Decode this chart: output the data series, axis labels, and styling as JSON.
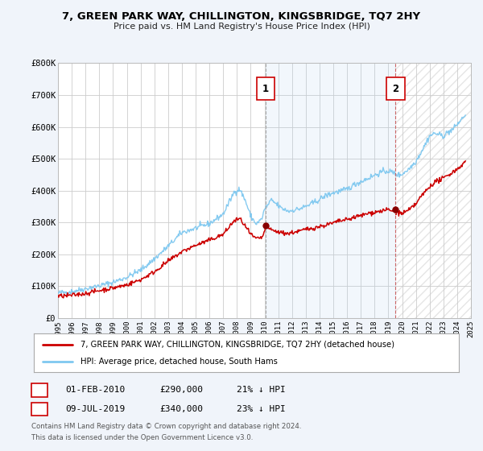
{
  "title": "7, GREEN PARK WAY, CHILLINGTON, KINGSBRIDGE, TQ7 2HY",
  "subtitle": "Price paid vs. HM Land Registry's House Price Index (HPI)",
  "legend_line1": "7, GREEN PARK WAY, CHILLINGTON, KINGSBRIDGE, TQ7 2HY (detached house)",
  "legend_line2": "HPI: Average price, detached house, South Hams",
  "sale1_date": "01-FEB-2010",
  "sale1_price": "£290,000",
  "sale1_hpi": "21% ↓ HPI",
  "sale2_date": "09-JUL-2019",
  "sale2_price": "£340,000",
  "sale2_hpi": "23% ↓ HPI",
  "footer1": "Contains HM Land Registry data © Crown copyright and database right 2024.",
  "footer2": "This data is licensed under the Open Government Licence v3.0.",
  "hpi_color": "#7ec8f0",
  "price_color": "#cc0000",
  "sale_marker_color": "#880000",
  "bg_color": "#f0f4fa",
  "plot_bg_color": "#ffffff",
  "grid_color": "#cccccc",
  "vline1_x": 2010.08,
  "vline2_x": 2019.52,
  "sale1_dot_x": 2010.08,
  "sale1_dot_y": 290000,
  "sale2_dot_x": 2019.52,
  "sale2_dot_y": 340000,
  "ylim": [
    0,
    800000
  ],
  "xlim_start": 1995,
  "xlim_end": 2025,
  "yticks": [
    0,
    100000,
    200000,
    300000,
    400000,
    500000,
    600000,
    700000,
    800000
  ],
  "ytick_labels": [
    "£0",
    "£100K",
    "£200K",
    "£300K",
    "£400K",
    "£500K",
    "£600K",
    "£700K",
    "£800K"
  ],
  "xticks": [
    1995,
    1996,
    1997,
    1998,
    1999,
    2000,
    2001,
    2002,
    2003,
    2004,
    2005,
    2006,
    2007,
    2008,
    2009,
    2010,
    2011,
    2012,
    2013,
    2014,
    2015,
    2016,
    2017,
    2018,
    2019,
    2020,
    2021,
    2022,
    2023,
    2024,
    2025
  ]
}
